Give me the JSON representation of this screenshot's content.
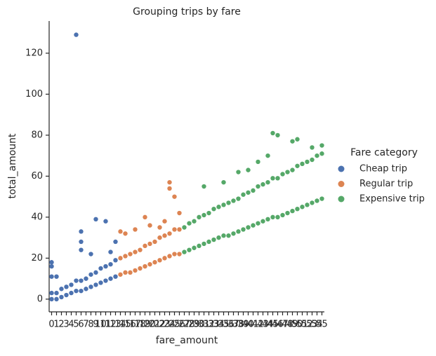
{
  "chart_data": {
    "type": "strip",
    "title": "Grouping trips by fare",
    "x_label": "fare_amount",
    "y_label": "total_amount",
    "legend_title": "Fare category",
    "legend_position": "right",
    "categories": [
      "0",
      "1",
      "2",
      "3",
      "4",
      "5",
      "6",
      "7",
      "8",
      "9",
      "10",
      "11",
      "12",
      "13",
      "14",
      "15",
      "16",
      "17",
      "18",
      "19",
      "20",
      "21",
      "22",
      "23",
      "24",
      "25",
      "26",
      "27",
      "28",
      "29",
      "30",
      "31",
      "32",
      "33",
      "34",
      "35",
      "36",
      "37",
      "38",
      "39",
      "40",
      "41",
      "42",
      "43",
      "44",
      "45",
      "46",
      "47",
      "48",
      "49",
      "50",
      "51",
      "52",
      "53",
      "54",
      "55"
    ],
    "ylim": [
      -6.2,
      135.7
    ],
    "yticks": [
      0,
      20,
      40,
      60,
      80,
      100,
      120
    ],
    "series": [
      {
        "name": "Cheap trip",
        "color": "#4c72b0",
        "x": [
          "0",
          "1",
          "2",
          "3",
          "4",
          "5",
          "6",
          "7",
          "8",
          "9",
          "10",
          "11",
          "12",
          "13",
          "0",
          "1",
          "2",
          "3",
          "4",
          "5",
          "6",
          "7",
          "8",
          "9",
          "10",
          "11",
          "12",
          "13",
          "0",
          "0",
          "0",
          "1",
          "5",
          "6",
          "6",
          "6",
          "9",
          "11",
          "13",
          "12",
          "8"
        ],
        "values": [
          0,
          0,
          1,
          2,
          3,
          4,
          4,
          5,
          6,
          7,
          8,
          9,
          10,
          11,
          3,
          3,
          5,
          6,
          7,
          9,
          9,
          10,
          12,
          13,
          15,
          16,
          17,
          19,
          18,
          16,
          11,
          11,
          129,
          33,
          28,
          24,
          39,
          38,
          28,
          23,
          22
        ]
      },
      {
        "name": "Regular trip",
        "color": "#dd8452",
        "x": [
          "14",
          "15",
          "16",
          "17",
          "18",
          "19",
          "20",
          "21",
          "22",
          "23",
          "24",
          "25",
          "26",
          "14",
          "15",
          "16",
          "17",
          "18",
          "19",
          "20",
          "21",
          "22",
          "23",
          "24",
          "25",
          "26",
          "14",
          "15",
          "17",
          "19",
          "22",
          "23",
          "24",
          "24",
          "25",
          "26",
          "20"
        ],
        "values": [
          12,
          13,
          13,
          14,
          15,
          16,
          17,
          18,
          19,
          20,
          21,
          22,
          22,
          20,
          21,
          22,
          23,
          24,
          26,
          27,
          28,
          30,
          31,
          32,
          34,
          34,
          33,
          32,
          34,
          40,
          35,
          38,
          57,
          54,
          50,
          42,
          36
        ]
      },
      {
        "name": "Expensive trip",
        "color": "#55a868",
        "x": [
          "27",
          "28",
          "29",
          "30",
          "31",
          "32",
          "33",
          "34",
          "35",
          "36",
          "37",
          "38",
          "39",
          "40",
          "41",
          "42",
          "43",
          "44",
          "45",
          "46",
          "47",
          "48",
          "49",
          "50",
          "51",
          "52",
          "53",
          "54",
          "55",
          "27",
          "28",
          "29",
          "30",
          "31",
          "32",
          "33",
          "34",
          "35",
          "36",
          "37",
          "38",
          "39",
          "40",
          "41",
          "42",
          "43",
          "44",
          "45",
          "46",
          "47",
          "48",
          "49",
          "50",
          "51",
          "52",
          "53",
          "54",
          "55",
          "45",
          "46",
          "49",
          "50",
          "53",
          "55",
          "40",
          "35",
          "31",
          "38",
          "42",
          "44"
        ],
        "values": [
          23,
          24,
          25,
          26,
          27,
          28,
          29,
          30,
          31,
          31,
          32,
          33,
          34,
          35,
          36,
          37,
          38,
          39,
          40,
          40,
          41,
          42,
          43,
          44,
          45,
          46,
          47,
          48,
          49,
          35,
          37,
          38,
          40,
          41,
          42,
          44,
          45,
          46,
          47,
          48,
          49,
          51,
          52,
          53,
          55,
          56,
          57,
          59,
          59,
          61,
          62,
          63,
          65,
          66,
          67,
          68,
          70,
          71,
          81,
          80,
          77,
          78,
          74,
          75,
          63,
          57,
          55,
          62,
          67,
          70
        ]
      }
    ]
  }
}
